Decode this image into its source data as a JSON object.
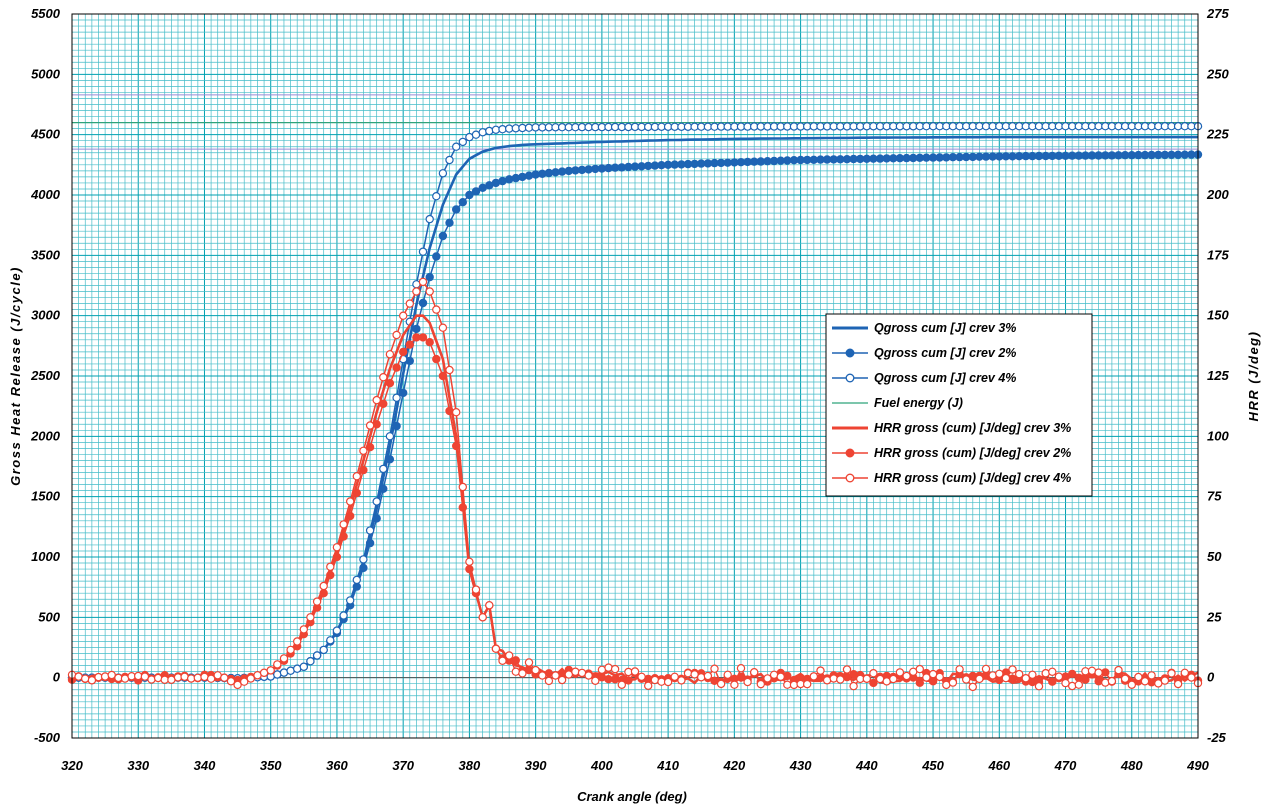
{
  "chart_data": {
    "type": "line",
    "xlabel": "Crank angle  (deg)",
    "ylabel_left": "Gross Heat Release  (J/cycle)",
    "ylabel_right": "HRR   (J/deg)",
    "xlim": [
      320,
      490
    ],
    "ylim_left": [
      -500,
      5500
    ],
    "ylim_right": [
      -25,
      275
    ],
    "x_ticks": [
      "320",
      "330",
      "340",
      "350",
      "360",
      "370",
      "380",
      "390",
      "400",
      "410",
      "420",
      "430",
      "440",
      "450",
      "460",
      "470",
      "480",
      "490"
    ],
    "y_left_ticks": [
      "-500",
      "0",
      "500",
      "1000",
      "1500",
      "2000",
      "2500",
      "3000",
      "3500",
      "4000",
      "4500",
      "5000",
      "5500"
    ],
    "y_right_ticks": [
      "-25",
      "0",
      "25",
      "50",
      "75",
      "100",
      "125",
      "150",
      "175",
      "200",
      "225",
      "250",
      "275"
    ],
    "grid": true,
    "legend_position": "right-middle",
    "colors": {
      "blue": "#1e64b4",
      "red": "#ee4433",
      "grid_major": "#00a0b0",
      "grid_minor": "#44bcc8",
      "fuel": "#2fa37a",
      "fuel_band": "#9a8ad8"
    },
    "fuel_energy": 4600,
    "fuel_band": [
      4380,
      4830
    ],
    "series": [
      {
        "name": "Qgross cum [J] crev 3%",
        "axis": "left",
        "style": "thick",
        "x": [
          320,
          340,
          345,
          350,
          355,
          358,
          360,
          362,
          364,
          366,
          368,
          370,
          372,
          374,
          376,
          378,
          380,
          382,
          384,
          386,
          388,
          390,
          395,
          400,
          410,
          420,
          430,
          440,
          450,
          460,
          470,
          480,
          490
        ],
        "values": [
          0,
          0,
          -5,
          10,
          90,
          230,
          380,
          620,
          950,
          1400,
          1920,
          2520,
          3090,
          3560,
          3920,
          4170,
          4300,
          4360,
          4390,
          4405,
          4415,
          4420,
          4430,
          4440,
          4455,
          4465,
          4470,
          4475,
          4478,
          4480,
          4480,
          4480,
          4480
        ]
      },
      {
        "name": "Qgross cum [J] crev 2%",
        "axis": "left",
        "style": "filled",
        "x": [
          320,
          340,
          345,
          350,
          355,
          358,
          360,
          362,
          364,
          366,
          368,
          370,
          372,
          374,
          376,
          378,
          380,
          382,
          384,
          386,
          388,
          390,
          395,
          400,
          410,
          420,
          430,
          440,
          450,
          460,
          470,
          480,
          490
        ],
        "values": [
          0,
          0,
          -5,
          10,
          90,
          230,
          370,
          600,
          910,
          1320,
          1810,
          2360,
          2890,
          3320,
          3660,
          3880,
          4000,
          4060,
          4100,
          4130,
          4150,
          4170,
          4200,
          4220,
          4250,
          4270,
          4290,
          4300,
          4310,
          4320,
          4325,
          4330,
          4335
        ]
      },
      {
        "name": "Qgross cum [J] crev 4%",
        "axis": "left",
        "style": "open",
        "x": [
          320,
          340,
          345,
          350,
          355,
          358,
          360,
          362,
          364,
          366,
          368,
          370,
          372,
          374,
          376,
          378,
          380,
          382,
          384,
          386,
          388,
          390,
          395,
          400,
          410,
          420,
          430,
          440,
          450,
          460,
          470,
          480,
          490
        ],
        "values": [
          0,
          0,
          -5,
          10,
          90,
          230,
          390,
          640,
          980,
          1460,
          2000,
          2640,
          3260,
          3800,
          4180,
          4400,
          4480,
          4520,
          4540,
          4550,
          4555,
          4560,
          4562,
          4563,
          4565,
          4567,
          4568,
          4569,
          4570,
          4570,
          4570,
          4570,
          4570
        ]
      },
      {
        "name": "Fuel energy  (J)",
        "axis": "left",
        "style": "thin",
        "x": [
          320,
          490
        ],
        "values": [
          4600,
          4600
        ]
      },
      {
        "name": "HRR gross (cum) [J/deg] crev 3%",
        "axis": "right",
        "style": "thick",
        "x": [
          320,
          340,
          343,
          345,
          348,
          350,
          352,
          354,
          356,
          358,
          360,
          362,
          364,
          366,
          368,
          370,
          372,
          373,
          374,
          376,
          378,
          380,
          382,
          383,
          384,
          386,
          388,
          390,
          395,
          400,
          405,
          410,
          420,
          430,
          440,
          450,
          460,
          470,
          480,
          490
        ],
        "values": [
          0,
          0,
          0,
          -1,
          1,
          3,
          7,
          14,
          24,
          36,
          52,
          70,
          90,
          110,
          128,
          142,
          150,
          150,
          147,
          132,
          100,
          45,
          25,
          30,
          12,
          6,
          4,
          3,
          2,
          1,
          0,
          0,
          0,
          0,
          0,
          0,
          0,
          0,
          0,
          0
        ]
      },
      {
        "name": "HRR gross (cum) [J/deg] crev 2%",
        "axis": "right",
        "style": "filled",
        "x": [
          320,
          340,
          343,
          345,
          348,
          350,
          352,
          354,
          356,
          358,
          360,
          362,
          364,
          366,
          368,
          370,
          372,
          373,
          374,
          376,
          378,
          380,
          382,
          383,
          384,
          386,
          388,
          390,
          395,
          400,
          405,
          410,
          420,
          430,
          440,
          450,
          460,
          470,
          480,
          490
        ],
        "values": [
          0,
          0,
          0,
          -1,
          1,
          3,
          7,
          13,
          23,
          35,
          50,
          67,
          86,
          105,
          122,
          135,
          141,
          141,
          139,
          125,
          96,
          45,
          25,
          30,
          12,
          6,
          4,
          3,
          2,
          1,
          0,
          0,
          0,
          0,
          0,
          0,
          0,
          0,
          0,
          0
        ]
      },
      {
        "name": "HRR gross (cum) [J/deg] crev 4%",
        "axis": "right",
        "style": "open",
        "x": [
          320,
          340,
          343,
          345,
          348,
          350,
          352,
          354,
          356,
          358,
          360,
          362,
          364,
          366,
          368,
          370,
          372,
          373,
          374,
          376,
          378,
          380,
          382,
          383,
          384,
          386,
          388,
          390,
          395,
          400,
          405,
          410,
          420,
          430,
          440,
          450,
          460,
          470,
          480,
          490
        ],
        "values": [
          0,
          0,
          0,
          -3,
          1,
          3,
          8,
          15,
          25,
          38,
          54,
          73,
          94,
          115,
          134,
          150,
          160,
          164,
          160,
          145,
          110,
          48,
          25,
          30,
          12,
          6,
          4,
          3,
          2,
          1,
          0,
          0,
          0,
          0,
          0,
          0,
          0,
          0,
          0,
          0
        ]
      }
    ]
  }
}
